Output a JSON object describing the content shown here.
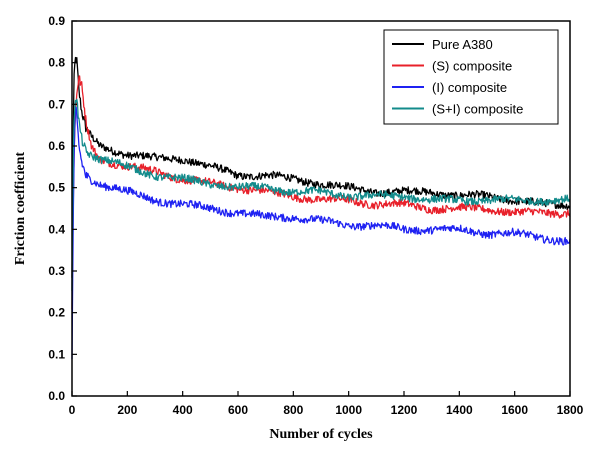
{
  "chart_data": {
    "type": "line",
    "xlabel": "Number of cycles",
    "ylabel": "Friction coefficient",
    "xlim": [
      0,
      1800
    ],
    "ylim": [
      0,
      0.9
    ],
    "xticks": [
      0,
      200,
      400,
      600,
      800,
      1000,
      1200,
      1400,
      1600,
      1800
    ],
    "yticks": [
      0.0,
      0.1,
      0.2,
      0.3,
      0.4,
      0.5,
      0.6,
      0.7,
      0.8,
      0.9
    ],
    "grid": false,
    "legend_position": "top-right",
    "series": [
      {
        "name": "Pure A380",
        "color": "#000000",
        "x": [
          0,
          4,
          8,
          13,
          18,
          25,
          35,
          50,
          70,
          100,
          150,
          200,
          300,
          400,
          500,
          600,
          700,
          800,
          900,
          1000,
          1100,
          1200,
          1300,
          1400,
          1500,
          1600,
          1700,
          1800
        ],
        "y": [
          0.28,
          0.62,
          0.78,
          0.81,
          0.8,
          0.73,
          0.68,
          0.64,
          0.62,
          0.6,
          0.59,
          0.58,
          0.57,
          0.57,
          0.55,
          0.53,
          0.53,
          0.52,
          0.51,
          0.5,
          0.49,
          0.49,
          0.49,
          0.48,
          0.48,
          0.47,
          0.46,
          0.46
        ]
      },
      {
        "name": "(S) composite",
        "color": "#e8202a",
        "x": [
          0,
          4,
          8,
          13,
          18,
          25,
          35,
          50,
          70,
          100,
          150,
          200,
          300,
          400,
          500,
          600,
          700,
          800,
          900,
          1000,
          1100,
          1200,
          1300,
          1400,
          1500,
          1600,
          1700,
          1800
        ],
        "y": [
          0.2,
          0.45,
          0.6,
          0.68,
          0.73,
          0.76,
          0.74,
          0.66,
          0.6,
          0.57,
          0.56,
          0.55,
          0.54,
          0.52,
          0.51,
          0.5,
          0.49,
          0.48,
          0.47,
          0.47,
          0.46,
          0.46,
          0.45,
          0.45,
          0.45,
          0.44,
          0.44,
          0.44
        ]
      },
      {
        "name": "(I) composite",
        "color": "#1f22f2",
        "x": [
          0,
          4,
          8,
          13,
          18,
          25,
          35,
          50,
          70,
          100,
          150,
          200,
          300,
          400,
          500,
          600,
          700,
          800,
          900,
          1000,
          1100,
          1200,
          1300,
          1400,
          1500,
          1600,
          1700,
          1800
        ],
        "y": [
          0.08,
          0.4,
          0.6,
          0.69,
          0.66,
          0.6,
          0.56,
          0.53,
          0.52,
          0.51,
          0.5,
          0.49,
          0.47,
          0.46,
          0.45,
          0.44,
          0.43,
          0.43,
          0.42,
          0.41,
          0.41,
          0.4,
          0.4,
          0.4,
          0.39,
          0.39,
          0.38,
          0.37
        ]
      },
      {
        "name": "(S+I) composite",
        "color": "#138b8b",
        "x": [
          0,
          4,
          8,
          13,
          18,
          25,
          35,
          50,
          70,
          100,
          150,
          200,
          300,
          400,
          500,
          600,
          700,
          800,
          900,
          1000,
          1100,
          1200,
          1300,
          1400,
          1500,
          1600,
          1700,
          1800
        ],
        "y": [
          0.26,
          0.55,
          0.68,
          0.72,
          0.71,
          0.66,
          0.62,
          0.59,
          0.58,
          0.57,
          0.56,
          0.55,
          0.53,
          0.52,
          0.51,
          0.5,
          0.5,
          0.49,
          0.49,
          0.48,
          0.48,
          0.48,
          0.47,
          0.47,
          0.47,
          0.47,
          0.47,
          0.47
        ]
      }
    ]
  }
}
